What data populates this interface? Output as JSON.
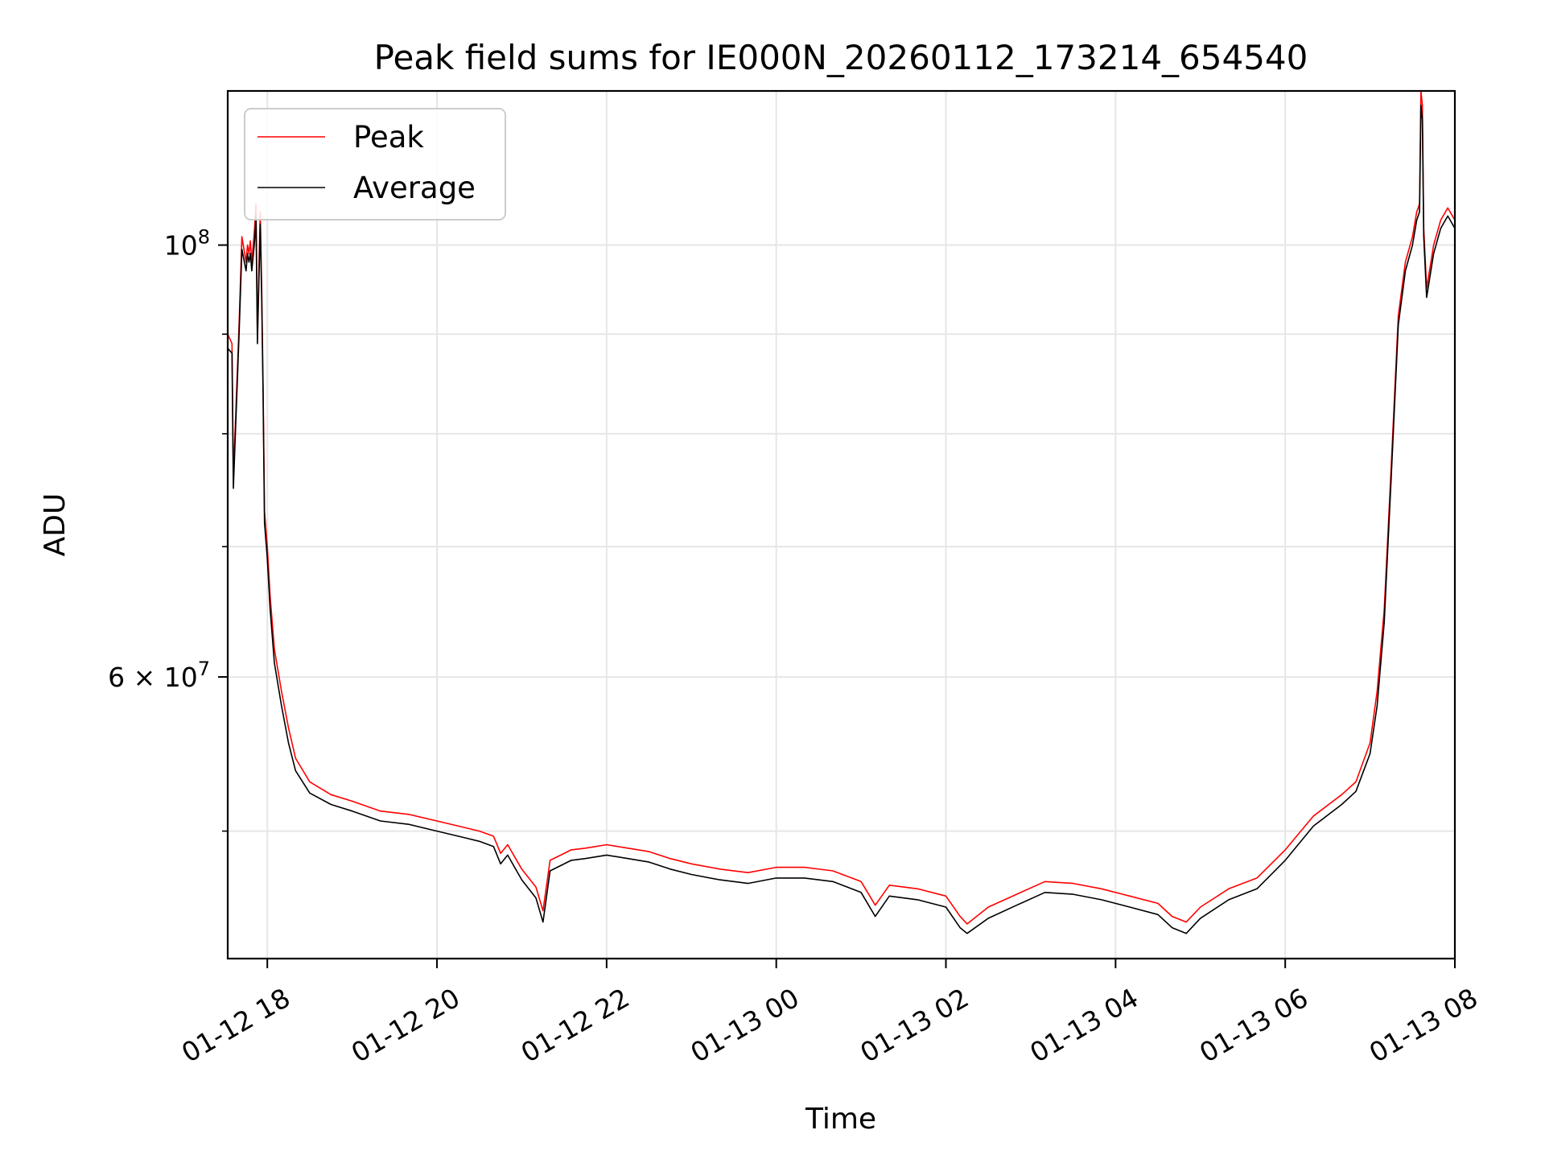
{
  "chart_data": {
    "type": "line",
    "title": "Peak field sums for IE000N_20260112_173214_654540",
    "xlabel": "Time",
    "ylabel": "ADU",
    "y_scale": "log",
    "xlim": [
      "2026-01-12T17:32",
      "2026-01-13T08:00"
    ],
    "ylim": [
      43000000,
      120000000
    ],
    "grid": true,
    "legend_position": "upper-left",
    "x_ticks": [
      {
        "value": "2026-01-12T18:00",
        "label": "01-12 18"
      },
      {
        "value": "2026-01-12T20:00",
        "label": "01-12 20"
      },
      {
        "value": "2026-01-12T22:00",
        "label": "01-12 22"
      },
      {
        "value": "2026-01-13T00:00",
        "label": "01-13 00"
      },
      {
        "value": "2026-01-13T02:00",
        "label": "01-13 02"
      },
      {
        "value": "2026-01-13T04:00",
        "label": "01-13 04"
      },
      {
        "value": "2026-01-13T06:00",
        "label": "01-13 06"
      },
      {
        "value": "2026-01-13T08:00",
        "label": "01-13 08"
      }
    ],
    "y_ticks": [
      {
        "value": 60000000,
        "base": "6 × 10",
        "exp": "7"
      },
      {
        "value": 100000000,
        "base": "10",
        "exp": "8"
      }
    ],
    "y_minor_ticks": [
      50000000,
      70000000,
      80000000,
      90000000
    ],
    "x": [
      "2026-01-12T17:32",
      "2026-01-12T17:35",
      "2026-01-12T17:36",
      "2026-01-12T17:40",
      "2026-01-12T17:42",
      "2026-01-12T17:45",
      "2026-01-12T17:46",
      "2026-01-12T17:47",
      "2026-01-12T17:48",
      "2026-01-12T17:49",
      "2026-01-12T17:51",
      "2026-01-12T17:52",
      "2026-01-12T17:53",
      "2026-01-12T17:55",
      "2026-01-12T17:56",
      "2026-01-12T17:57",
      "2026-01-12T17:58",
      "2026-01-12T18:00",
      "2026-01-12T18:02",
      "2026-01-12T18:05",
      "2026-01-12T18:10",
      "2026-01-12T18:15",
      "2026-01-12T18:20",
      "2026-01-12T18:30",
      "2026-01-12T18:45",
      "2026-01-12T19:00",
      "2026-01-12T19:20",
      "2026-01-12T19:40",
      "2026-01-12T20:00",
      "2026-01-12T20:20",
      "2026-01-12T20:30",
      "2026-01-12T20:40",
      "2026-01-12T20:45",
      "2026-01-12T20:50",
      "2026-01-12T21:00",
      "2026-01-12T21:10",
      "2026-01-12T21:15",
      "2026-01-12T21:20",
      "2026-01-12T21:25",
      "2026-01-12T21:35",
      "2026-01-12T21:45",
      "2026-01-12T22:00",
      "2026-01-12T22:15",
      "2026-01-12T22:30",
      "2026-01-12T22:45",
      "2026-01-12T23:00",
      "2026-01-12T23:20",
      "2026-01-12T23:40",
      "2026-01-13T00:00",
      "2026-01-13T00:20",
      "2026-01-13T00:40",
      "2026-01-13T01:00",
      "2026-01-13T01:10",
      "2026-01-13T01:20",
      "2026-01-13T01:40",
      "2026-01-13T02:00",
      "2026-01-13T02:10",
      "2026-01-13T02:15",
      "2026-01-13T02:30",
      "2026-01-13T02:50",
      "2026-01-13T03:10",
      "2026-01-13T03:30",
      "2026-01-13T03:50",
      "2026-01-13T04:10",
      "2026-01-13T04:30",
      "2026-01-13T04:40",
      "2026-01-13T04:50",
      "2026-01-13T05:00",
      "2026-01-13T05:20",
      "2026-01-13T05:40",
      "2026-01-13T06:00",
      "2026-01-13T06:20",
      "2026-01-13T06:40",
      "2026-01-13T06:50",
      "2026-01-13T07:00",
      "2026-01-13T07:05",
      "2026-01-13T07:10",
      "2026-01-13T07:15",
      "2026-01-13T07:20",
      "2026-01-13T07:25",
      "2026-01-13T07:30",
      "2026-01-13T07:33",
      "2026-01-13T07:35",
      "2026-01-13T07:36",
      "2026-01-13T07:37",
      "2026-01-13T07:38",
      "2026-01-13T07:40",
      "2026-01-13T07:45",
      "2026-01-13T07:50",
      "2026-01-13T07:55",
      "2026-01-13T08:00"
    ],
    "series": [
      {
        "name": "Peak",
        "color": "#ff0000",
        "values": [
          90000000,
          89000000,
          76000000,
          91000000,
          101000000,
          98000000,
          100000000,
          99000000,
          100500000,
          98000000,
          102000000,
          105000000,
          90000000,
          104000000,
          95000000,
          85000000,
          73000000,
          70000000,
          66000000,
          62000000,
          59000000,
          56500000,
          54500000,
          53000000,
          52200000,
          51800000,
          51200000,
          51000000,
          50600000,
          50200000,
          50000000,
          49700000,
          48700000,
          49200000,
          47800000,
          46800000,
          45500000,
          48300000,
          48500000,
          48900000,
          49000000,
          49200000,
          49000000,
          48800000,
          48400000,
          48100000,
          47800000,
          47600000,
          47900000,
          47900000,
          47700000,
          47100000,
          45800000,
          46900000,
          46700000,
          46300000,
          45200000,
          44800000,
          45700000,
          46400000,
          47100000,
          47000000,
          46700000,
          46300000,
          45900000,
          45200000,
          44900000,
          45700000,
          46700000,
          47300000,
          48900000,
          50900000,
          52200000,
          53000000,
          55500000,
          59000000,
          65000000,
          77000000,
          92000000,
          98000000,
          101000000,
          104000000,
          105000000,
          120000000,
          118000000,
          102000000,
          95000000,
          100000000,
          103000000,
          104500000,
          103000000
        ]
      },
      {
        "name": "Average",
        "color": "#000000",
        "values": [
          88500000,
          88000000,
          75000000,
          90000000,
          99500000,
          97000000,
          99000000,
          98000000,
          99000000,
          97000000,
          100500000,
          103500000,
          89000000,
          102500000,
          94000000,
          84000000,
          72000000,
          69000000,
          65000000,
          61000000,
          58000000,
          55500000,
          53700000,
          52300000,
          51600000,
          51200000,
          50600000,
          50400000,
          50000000,
          49600000,
          49400000,
          49100000,
          48100000,
          48600000,
          47200000,
          46200000,
          44900000,
          47700000,
          47900000,
          48300000,
          48400000,
          48600000,
          48400000,
          48200000,
          47800000,
          47500000,
          47200000,
          47000000,
          47300000,
          47300000,
          47100000,
          46500000,
          45200000,
          46300000,
          46100000,
          45700000,
          44600000,
          44300000,
          45100000,
          45800000,
          46500000,
          46400000,
          46100000,
          45700000,
          45300000,
          44600000,
          44300000,
          45100000,
          46100000,
          46700000,
          48300000,
          50300000,
          51600000,
          52400000,
          54800000,
          58000000,
          64000000,
          76000000,
          91000000,
          97000000,
          100000000,
          103000000,
          104000000,
          118000000,
          116000000,
          101000000,
          94000000,
          99000000,
          102000000,
          103500000,
          102000000
        ]
      }
    ]
  }
}
